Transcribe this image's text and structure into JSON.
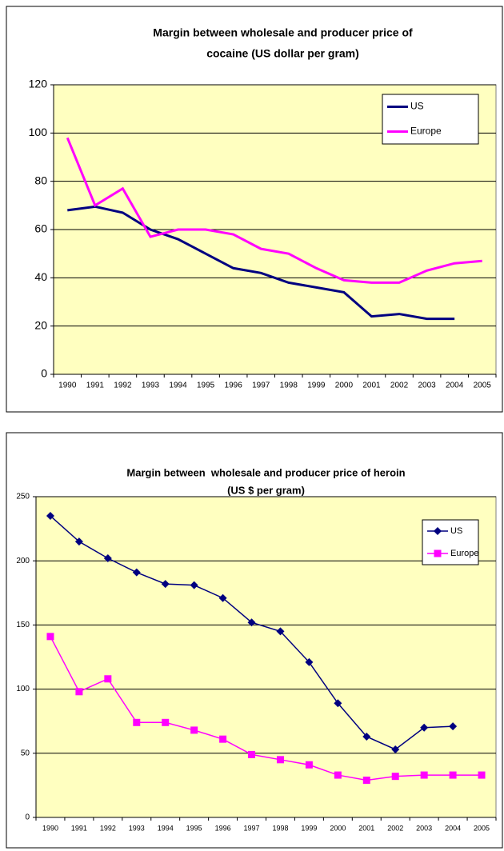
{
  "chart_data": [
    {
      "type": "line",
      "title": [
        "Margin between wholesale and producer price of",
        "cocaine (US dollar per gram)"
      ],
      "categories": [
        "1990",
        "1991",
        "1992",
        "1993",
        "1994",
        "1995",
        "1996",
        "1997",
        "1998",
        "1999",
        "2000",
        "2001",
        "2002",
        "2003",
        "2004",
        "2005"
      ],
      "series": [
        {
          "name": "US",
          "color": "#000080",
          "marker": "none",
          "values": [
            68,
            69.5,
            67,
            60,
            56,
            50,
            44,
            42,
            38,
            36,
            34,
            24,
            25,
            23,
            23,
            null
          ]
        },
        {
          "name": "Europe",
          "color": "#ff00ff",
          "marker": "none",
          "values": [
            98,
            70,
            77,
            57,
            60,
            60,
            58,
            52,
            50,
            44,
            39,
            38,
            38,
            43,
            46,
            47
          ]
        }
      ],
      "ylim": [
        0,
        120
      ],
      "yticks": [
        0,
        20,
        40,
        60,
        80,
        100,
        120
      ],
      "grid": true,
      "legend": "top-right",
      "background": "#ffffc0"
    },
    {
      "type": "line",
      "title": [
        "Margin between  wholesale and producer price of heroin",
        "(US $ per gram)"
      ],
      "categories": [
        "1990",
        "1991",
        "1992",
        "1993",
        "1994",
        "1995",
        "1996",
        "1997",
        "1998",
        "1999",
        "2000",
        "2001",
        "2002",
        "2003",
        "2004",
        "2005"
      ],
      "series": [
        {
          "name": "US",
          "color": "#000080",
          "marker": "diamond",
          "values": [
            235,
            215,
            202,
            191,
            182,
            181,
            171,
            152,
            145,
            121,
            89,
            63,
            53,
            70,
            71,
            null
          ]
        },
        {
          "name": "Europe",
          "color": "#ff00ff",
          "marker": "square",
          "values": [
            141,
            98,
            108,
            74,
            74,
            68,
            61,
            49,
            45,
            41,
            33,
            29,
            32,
            33,
            33,
            33
          ]
        }
      ],
      "ylim": [
        0,
        250
      ],
      "yticks": [
        0,
        50,
        100,
        150,
        200,
        250
      ],
      "grid": true,
      "legend": "top-right",
      "background": "#ffffc0"
    }
  ]
}
